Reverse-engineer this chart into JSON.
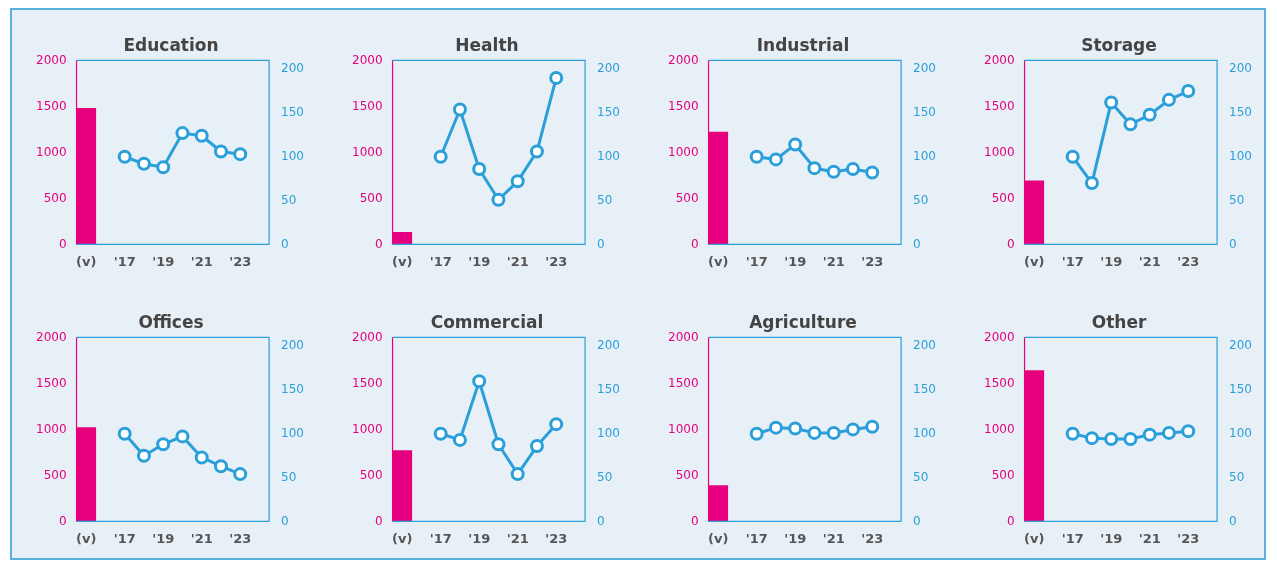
{
  "chart_data": [
    {
      "type": "bar",
      "title": "Education",
      "categories": [
        "(v)",
        null,
        "'17",
        null,
        "'19",
        null,
        "'21",
        null,
        "'23",
        null
      ],
      "marker": "circle",
      "ylim": [
        0,
        2000
      ],
      "yticks": [
        0,
        500,
        1000,
        1500,
        2000
      ],
      "y2lim": [
        0,
        210
      ],
      "y2ticks": [
        0,
        50,
        100,
        150,
        200
      ],
      "series": [
        {
          "color": "#e6007e",
          "values": [
            1480,
            null,
            null,
            null,
            null,
            null,
            null,
            null,
            null,
            null
          ]
        },
        {
          "type": "line",
          "axis": "y2",
          "color": "#2b9fd9",
          "values": [
            null,
            null,
            100,
            92,
            88,
            127,
            124,
            106,
            103,
            null
          ]
        }
      ]
    },
    {
      "type": "bar",
      "title": "Health",
      "categories": [
        "(v)",
        null,
        "'17",
        null,
        "'19",
        null,
        "'21",
        null,
        "'23",
        null
      ],
      "marker": "circle",
      "ylim": [
        0,
        2000
      ],
      "yticks": [
        0,
        500,
        1000,
        1500,
        2000
      ],
      "y2lim": [
        0,
        210
      ],
      "y2ticks": [
        0,
        50,
        100,
        150,
        200
      ],
      "series": [
        {
          "color": "#e6007e",
          "values": [
            130,
            null,
            null,
            null,
            null,
            null,
            null,
            null,
            null,
            null
          ]
        },
        {
          "type": "line",
          "axis": "y2",
          "color": "#2b9fd9",
          "values": [
            null,
            null,
            100,
            154,
            86,
            51,
            72,
            106,
            190,
            null
          ]
        }
      ]
    },
    {
      "type": "bar",
      "title": "Industrial",
      "categories": [
        "(v)",
        null,
        "'17",
        null,
        "'19",
        null,
        "'21",
        null,
        "'23",
        null
      ],
      "marker": "circle",
      "ylim": [
        0,
        2000
      ],
      "yticks": [
        0,
        500,
        1000,
        1500,
        2000
      ],
      "y2lim": [
        0,
        210
      ],
      "y2ticks": [
        0,
        50,
        100,
        150,
        200
      ],
      "series": [
        {
          "color": "#e6007e",
          "values": [
            1220,
            null,
            null,
            null,
            null,
            null,
            null,
            null,
            null,
            null
          ]
        },
        {
          "type": "line",
          "axis": "y2",
          "color": "#2b9fd9",
          "values": [
            null,
            null,
            100,
            97,
            114,
            87,
            83,
            86,
            82,
            null
          ]
        }
      ]
    },
    {
      "type": "bar",
      "title": "Storage",
      "categories": [
        "(v)",
        null,
        "'17",
        null,
        "'19",
        null,
        "'21",
        null,
        "'23",
        null
      ],
      "marker": "circle",
      "ylim": [
        0,
        2000
      ],
      "yticks": [
        0,
        500,
        1000,
        1500,
        2000
      ],
      "y2lim": [
        0,
        210
      ],
      "y2ticks": [
        0,
        50,
        100,
        150,
        200
      ],
      "series": [
        {
          "color": "#e6007e",
          "values": [
            690,
            null,
            null,
            null,
            null,
            null,
            null,
            null,
            null,
            null
          ]
        },
        {
          "type": "line",
          "axis": "y2",
          "color": "#2b9fd9",
          "values": [
            null,
            null,
            100,
            70,
            162,
            137,
            148,
            165,
            175,
            null
          ]
        }
      ]
    },
    {
      "type": "bar",
      "title": "Offices",
      "categories": [
        "(v)",
        null,
        "'17",
        null,
        "'19",
        null,
        "'21",
        null,
        "'23",
        null
      ],
      "marker": "circle",
      "ylim": [
        0,
        2000
      ],
      "yticks": [
        0,
        500,
        1000,
        1500,
        2000
      ],
      "y2lim": [
        0,
        210
      ],
      "y2ticks": [
        0,
        50,
        100,
        150,
        200
      ],
      "series": [
        {
          "color": "#e6007e",
          "values": [
            1020,
            null,
            null,
            null,
            null,
            null,
            null,
            null,
            null,
            null
          ]
        },
        {
          "type": "line",
          "axis": "y2",
          "color": "#2b9fd9",
          "values": [
            null,
            null,
            100,
            75,
            88,
            97,
            73,
            63,
            54,
            null
          ]
        }
      ]
    },
    {
      "type": "bar",
      "title": "Commercial",
      "categories": [
        "(v)",
        null,
        "'17",
        null,
        "'19",
        null,
        "'21",
        null,
        "'23",
        null
      ],
      "marker": "circle",
      "ylim": [
        0,
        2000
      ],
      "yticks": [
        0,
        500,
        1000,
        1500,
        2000
      ],
      "y2lim": [
        0,
        210
      ],
      "y2ticks": [
        0,
        50,
        100,
        150,
        200
      ],
      "series": [
        {
          "color": "#e6007e",
          "values": [
            770,
            null,
            null,
            null,
            null,
            null,
            null,
            null,
            null,
            null
          ]
        },
        {
          "type": "line",
          "axis": "y2",
          "color": "#2b9fd9",
          "values": [
            null,
            null,
            100,
            93,
            160,
            88,
            54,
            86,
            111,
            null
          ]
        }
      ]
    },
    {
      "type": "bar",
      "title": "Agriculture",
      "categories": [
        "(v)",
        null,
        "'17",
        null,
        "'19",
        null,
        "'21",
        null,
        "'23",
        null
      ],
      "marker": "circle",
      "ylim": [
        0,
        2000
      ],
      "yticks": [
        0,
        500,
        1000,
        1500,
        2000
      ],
      "y2lim": [
        0,
        210
      ],
      "y2ticks": [
        0,
        50,
        100,
        150,
        200
      ],
      "series": [
        {
          "color": "#e6007e",
          "values": [
            390,
            null,
            null,
            null,
            null,
            null,
            null,
            null,
            null,
            null
          ]
        },
        {
          "type": "line",
          "axis": "y2",
          "color": "#2b9fd9",
          "values": [
            null,
            null,
            100,
            107,
            106,
            101,
            101,
            105,
            108,
            null
          ]
        }
      ]
    },
    {
      "type": "bar",
      "title": "Other",
      "categories": [
        "(v)",
        null,
        "'17",
        null,
        "'19",
        null,
        "'21",
        null,
        "'23",
        null
      ],
      "marker": "circle",
      "ylim": [
        0,
        2000
      ],
      "yticks": [
        0,
        500,
        1000,
        1500,
        2000
      ],
      "y2lim": [
        0,
        210
      ],
      "y2ticks": [
        0,
        50,
        100,
        150,
        200
      ],
      "series": [
        {
          "color": "#e6007e",
          "values": [
            1640,
            null,
            null,
            null,
            null,
            null,
            null,
            null,
            null,
            null
          ]
        },
        {
          "type": "line",
          "axis": "y2",
          "color": "#2b9fd9",
          "values": [
            null,
            null,
            100,
            95,
            94,
            94,
            99,
            101,
            103,
            null
          ]
        }
      ]
    }
  ]
}
